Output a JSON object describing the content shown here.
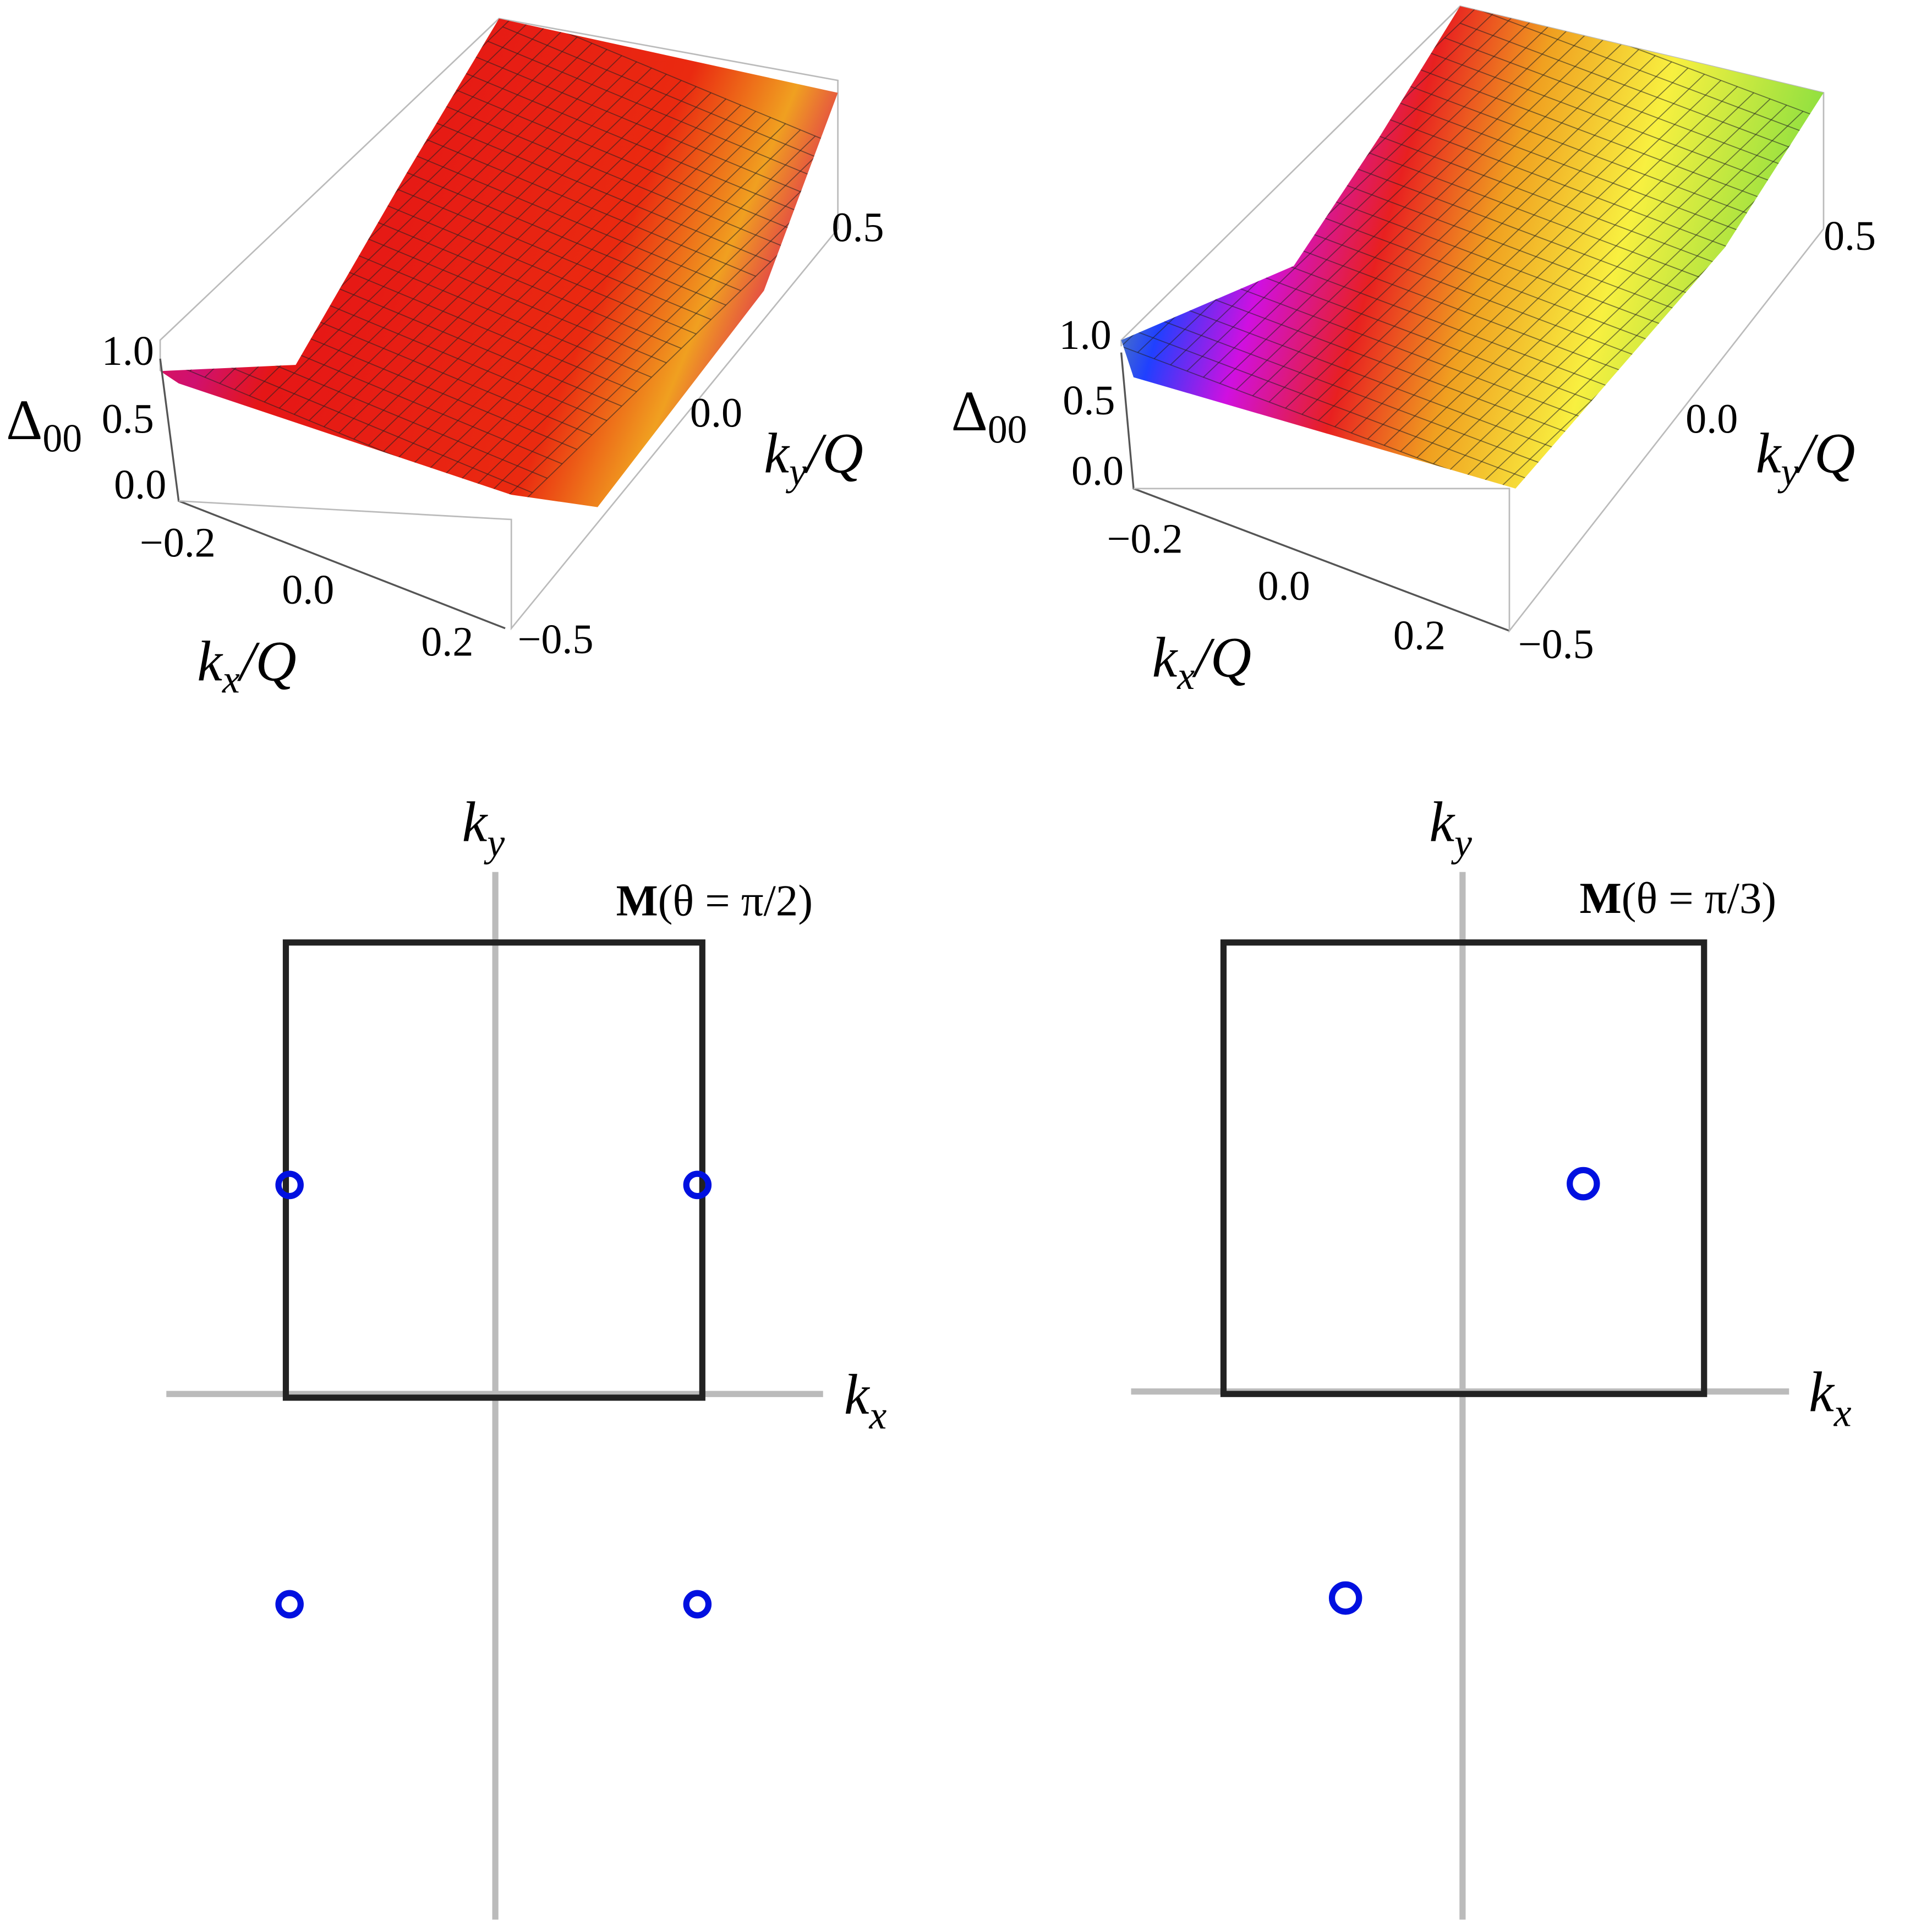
{
  "panels": [
    {
      "z_axis": {
        "label": {
          "base": "Δ",
          "sub": "00"
        },
        "ticks": [
          "1.0",
          "0.5",
          "0.0"
        ]
      },
      "x_axis": {
        "label": {
          "k": "k",
          "sub": "x",
          "rest": "/Q"
        },
        "ticks": [
          "−0.2",
          "0.0",
          "0.2"
        ]
      },
      "y_axis": {
        "label": {
          "k": "k",
          "sub": "y",
          "rest": "/Q"
        },
        "ticks": [
          "0.5",
          "0.0",
          "−0.5"
        ]
      }
    },
    {
      "z_axis": {
        "label": {
          "base": "Δ",
          "sub": "00"
        },
        "ticks": [
          "1.0",
          "0.5",
          "0.0"
        ]
      },
      "x_axis": {
        "label": {
          "k": "k",
          "sub": "x",
          "rest": "/Q"
        },
        "ticks": [
          "−0.2",
          "0.0",
          "0.2"
        ]
      },
      "y_axis": {
        "label": {
          "k": "k",
          "sub": "y",
          "rest": "/Q"
        },
        "ticks": [
          "0.5",
          "0.0",
          "−0.5"
        ]
      }
    },
    {
      "ky": {
        "k": "k",
        "sub": "y"
      },
      "kx": {
        "k": "k",
        "sub": "x"
      },
      "annotation": {
        "bold": "M",
        "rest": "(θ = π/2)"
      }
    },
    {
      "ky": {
        "k": "k",
        "sub": "y"
      },
      "kx": {
        "k": "k",
        "sub": "x"
      },
      "annotation": {
        "bold": "M",
        "rest": "(θ = π/3)"
      }
    }
  ]
}
